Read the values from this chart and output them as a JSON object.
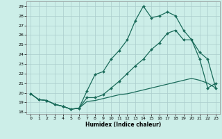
{
  "bg_color": "#cceee8",
  "grid_color": "#aacccc",
  "line_color": "#1a6b5a",
  "xlabel": "Humidex (Indice chaleur)",
  "xlim": [
    -0.5,
    23.5
  ],
  "ylim": [
    17.8,
    29.5
  ],
  "yticks": [
    18,
    19,
    20,
    21,
    22,
    23,
    24,
    25,
    26,
    27,
    28,
    29
  ],
  "xticks": [
    0,
    1,
    2,
    3,
    4,
    5,
    6,
    7,
    8,
    9,
    10,
    11,
    12,
    13,
    14,
    15,
    16,
    17,
    18,
    19,
    20,
    21,
    22,
    23
  ],
  "line1_x": [
    0,
    1,
    2,
    3,
    4,
    5,
    6,
    7,
    8,
    9,
    10,
    11,
    12,
    13,
    14,
    15,
    16,
    17,
    18,
    19,
    20,
    21,
    22,
    23
  ],
  "line1_y": [
    19.9,
    19.3,
    19.2,
    18.8,
    18.6,
    18.3,
    18.4,
    20.2,
    21.9,
    22.2,
    23.5,
    24.4,
    25.5,
    27.5,
    29.0,
    27.8,
    28.0,
    28.4,
    28.0,
    26.5,
    25.5,
    23.5,
    20.5,
    21.0
  ],
  "line2_x": [
    0,
    1,
    2,
    3,
    4,
    5,
    6,
    7,
    8,
    9,
    10,
    11,
    12,
    13,
    14,
    15,
    16,
    17,
    18,
    19,
    20,
    21,
    22,
    23
  ],
  "line2_y": [
    19.9,
    19.3,
    19.2,
    18.8,
    18.6,
    18.3,
    18.4,
    19.5,
    19.5,
    19.8,
    20.5,
    21.2,
    22.0,
    22.8,
    23.5,
    24.5,
    25.2,
    26.2,
    26.5,
    25.5,
    25.5,
    24.2,
    23.5,
    20.5
  ],
  "line3_x": [
    0,
    1,
    2,
    3,
    4,
    5,
    6,
    7,
    8,
    9,
    10,
    11,
    12,
    13,
    14,
    15,
    16,
    17,
    18,
    19,
    20,
    21,
    22,
    23
  ],
  "line3_y": [
    19.9,
    19.3,
    19.2,
    18.8,
    18.6,
    18.3,
    18.4,
    19.1,
    19.2,
    19.4,
    19.6,
    19.8,
    19.9,
    20.1,
    20.3,
    20.5,
    20.7,
    20.9,
    21.1,
    21.3,
    21.5,
    21.3,
    21.0,
    20.5
  ]
}
